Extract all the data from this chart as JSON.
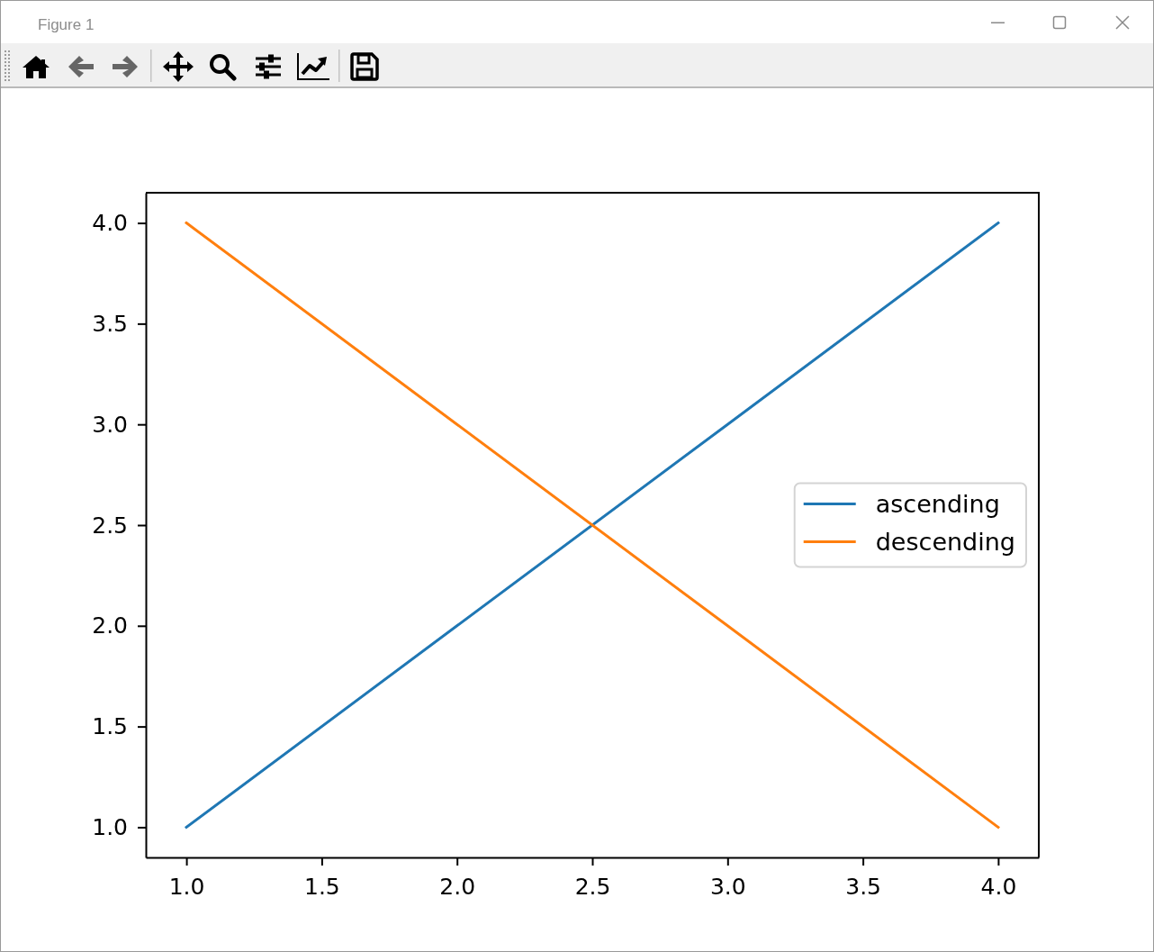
{
  "chart_data": {
    "type": "line",
    "x": [
      1,
      2,
      3,
      4
    ],
    "series": [
      {
        "name": "ascending",
        "color": "#1f77b4",
        "values": [
          1,
          2,
          3,
          4
        ]
      },
      {
        "name": "descending",
        "color": "#ff7f0e",
        "values": [
          4,
          3,
          2,
          1
        ]
      }
    ],
    "xlim": [
      0.85,
      4.15
    ],
    "ylim": [
      0.85,
      4.15
    ],
    "xticks": [
      {
        "value": 1,
        "label": "1.0"
      },
      {
        "value": 1.5,
        "label": "1.5"
      },
      {
        "value": 2,
        "label": "2.0"
      },
      {
        "value": 2.5,
        "label": "2.5"
      },
      {
        "value": 3,
        "label": "3.0"
      },
      {
        "value": 3.5,
        "label": "3.5"
      },
      {
        "value": 4,
        "label": "4.0"
      }
    ],
    "yticks": [
      {
        "value": 1,
        "label": "1.0"
      },
      {
        "value": 1.5,
        "label": "1.5"
      },
      {
        "value": 2,
        "label": "2.0"
      },
      {
        "value": 2.5,
        "label": "2.5"
      },
      {
        "value": 3,
        "label": "3.0"
      },
      {
        "value": 3.5,
        "label": "3.5"
      },
      {
        "value": 4,
        "label": "4.0"
      }
    ],
    "legend": "right",
    "annotations": [
      "Figure 1"
    ]
  }
}
